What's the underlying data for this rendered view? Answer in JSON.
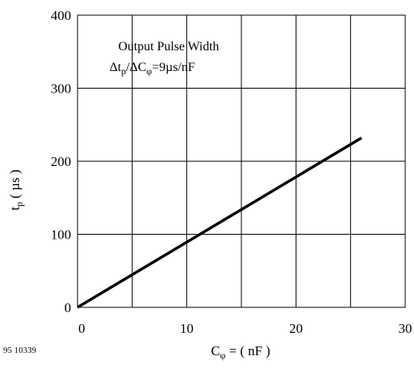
{
  "chart_data": {
    "type": "line",
    "xlim": [
      0,
      30
    ],
    "ylim": [
      0,
      400
    ],
    "x_ticks": [
      0,
      10,
      20,
      30
    ],
    "y_ticks": [
      0,
      100,
      200,
      300,
      400
    ],
    "grid": true,
    "grid_x_step": 5,
    "grid_y_step": 100,
    "xlabel": {
      "main": "C",
      "sub": "φ",
      "rest": " = ( nF )"
    },
    "ylabel": {
      "main": "t",
      "sub": "p",
      "rest": "  ( µs )"
    },
    "annotation": {
      "line1": "Output Pulse Width",
      "line2": {
        "d1": "Δt",
        "s1": "p",
        "mid": "/ΔC",
        "s2": "φ",
        "end": "=9µs/nF"
      }
    },
    "series": [
      {
        "x": [
          0,
          26
        ],
        "y": [
          0,
          232
        ],
        "color": "#000000"
      }
    ]
  },
  "figure_id": "95 10339"
}
